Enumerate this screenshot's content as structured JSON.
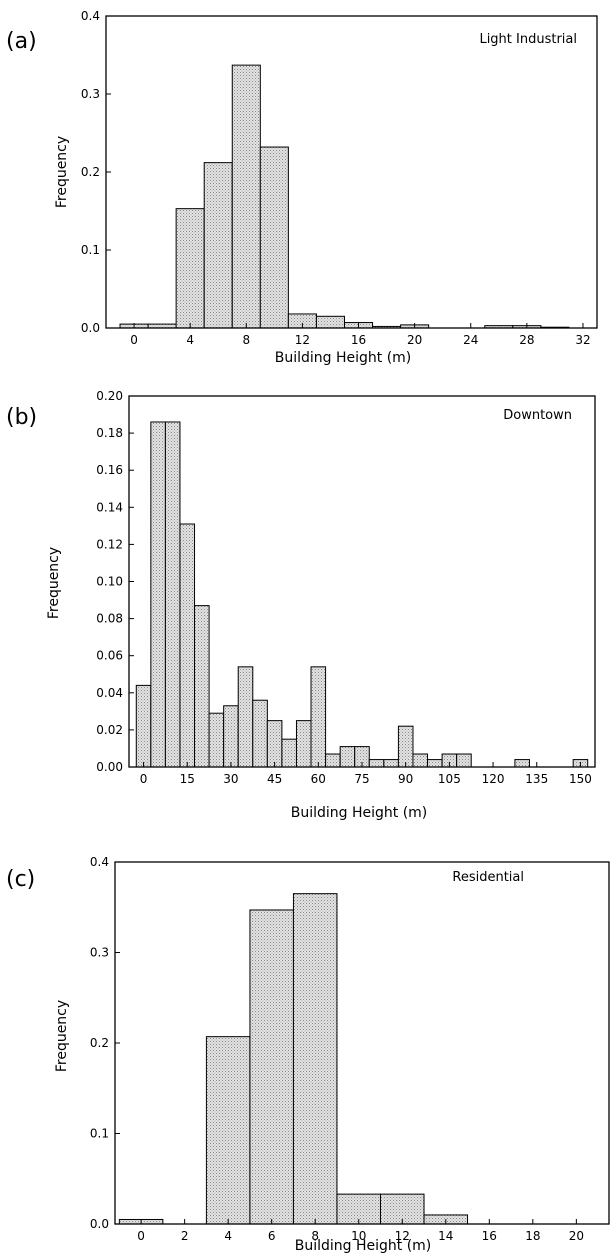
{
  "chart_data": [
    {
      "panel_label": "(a)",
      "type": "bar",
      "annotation": "Light Industrial",
      "xlabel": "Building Height (m)",
      "ylabel": "Frequency",
      "xlim": [
        -2,
        33
      ],
      "ylim": [
        0,
        0.4
      ],
      "xticks": [
        0,
        4,
        8,
        12,
        16,
        20,
        24,
        28,
        32
      ],
      "xtick_labels": [
        "0",
        "4",
        "8",
        "12",
        "16",
        "20",
        "24",
        "28",
        "32"
      ],
      "yticks": [
        0.0,
        0.1,
        0.2,
        0.3,
        0.4
      ],
      "ytick_labels": [
        "0.0",
        "0.1",
        "0.2",
        "0.3",
        "0.4"
      ],
      "bin_width": 2,
      "bin_starts": [
        -1,
        1,
        3,
        5,
        7,
        9,
        11,
        13,
        15,
        17,
        19,
        21,
        23,
        25,
        27,
        29
      ],
      "values": [
        0.005,
        0.005,
        0.153,
        0.212,
        0.337,
        0.232,
        0.018,
        0.015,
        0.007,
        0.002,
        0.004,
        0.0,
        0.0,
        0.003,
        0.003,
        0.001
      ]
    },
    {
      "panel_label": "(b)",
      "type": "bar",
      "annotation": "Downtown",
      "xlabel": "Building Height (m)",
      "ylabel": "Frequency",
      "xlim": [
        -5,
        155
      ],
      "ylim": [
        0,
        0.2
      ],
      "xticks": [
        0,
        15,
        30,
        45,
        60,
        75,
        90,
        105,
        120,
        135,
        150
      ],
      "xtick_labels": [
        "0",
        "15",
        "30",
        "45",
        "60",
        "75",
        "90",
        "105",
        "120",
        "135",
        "150"
      ],
      "yticks": [
        0.0,
        0.02,
        0.04,
        0.06,
        0.08,
        0.1,
        0.12,
        0.14,
        0.16,
        0.18,
        0.2
      ],
      "ytick_labels": [
        "0.00",
        "0.02",
        "0.04",
        "0.06",
        "0.08",
        "0.10",
        "0.12",
        "0.14",
        "0.16",
        "0.18",
        "0.20"
      ],
      "bin_width": 5,
      "bin_starts": [
        -2.5,
        2.5,
        7.5,
        12.5,
        17.5,
        22.5,
        27.5,
        32.5,
        37.5,
        42.5,
        47.5,
        52.5,
        57.5,
        62.5,
        67.5,
        72.5,
        77.5,
        82.5,
        87.5,
        92.5,
        97.5,
        102.5,
        107.5,
        112.5,
        117.5,
        122.5,
        127.5,
        132.5,
        137.5,
        142.5,
        147.5
      ],
      "values": [
        0.044,
        0.186,
        0.186,
        0.131,
        0.087,
        0.029,
        0.033,
        0.054,
        0.036,
        0.025,
        0.015,
        0.025,
        0.054,
        0.007,
        0.011,
        0.011,
        0.004,
        0.004,
        0.022,
        0.007,
        0.004,
        0.007,
        0.007,
        0.0,
        0.0,
        0.0,
        0.004,
        0.0,
        0.0,
        0.0,
        0.004
      ]
    },
    {
      "panel_label": "(c)",
      "type": "bar",
      "annotation": "Residential",
      "xlabel": "Building Height (m)",
      "ylabel": "Frequency",
      "xlim": [
        -1.2,
        21.5
      ],
      "ylim": [
        0,
        0.4
      ],
      "xticks": [
        0,
        2,
        4,
        6,
        8,
        10,
        12,
        14,
        16,
        18,
        20
      ],
      "xtick_labels": [
        "0",
        "2",
        "4",
        "6",
        "8",
        "10",
        "12",
        "14",
        "16",
        "18",
        "20"
      ],
      "yticks": [
        0.0,
        0.1,
        0.2,
        0.3,
        0.4
      ],
      "ytick_labels": [
        "0.0",
        "0.1",
        "0.2",
        "0.3",
        "0.4"
      ],
      "bin_width": 2,
      "bin_starts": [
        -1,
        1,
        3,
        5,
        7,
        9,
        11,
        13
      ],
      "values": [
        0.005,
        0.0,
        0.207,
        0.347,
        0.365,
        0.033,
        0.033,
        0.01
      ]
    }
  ]
}
